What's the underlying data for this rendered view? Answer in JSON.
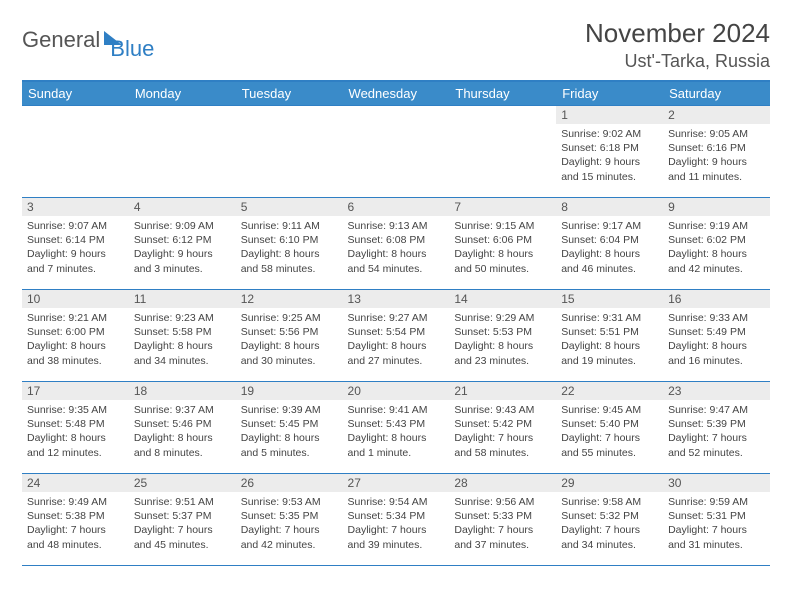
{
  "logo": {
    "text1": "General",
    "text2": "Blue"
  },
  "title": {
    "month": "November 2024",
    "location": "Ust'-Tarka, Russia"
  },
  "weekdays": [
    "Sunday",
    "Monday",
    "Tuesday",
    "Wednesday",
    "Thursday",
    "Friday",
    "Saturday"
  ],
  "colors": {
    "header_bg": "#3a8bc9",
    "accent": "#2f7fc4",
    "daynum_bg": "#ececec"
  },
  "weeks": [
    [
      {
        "n": "",
        "sr": "",
        "ss": "",
        "dl": ""
      },
      {
        "n": "",
        "sr": "",
        "ss": "",
        "dl": ""
      },
      {
        "n": "",
        "sr": "",
        "ss": "",
        "dl": ""
      },
      {
        "n": "",
        "sr": "",
        "ss": "",
        "dl": ""
      },
      {
        "n": "",
        "sr": "",
        "ss": "",
        "dl": ""
      },
      {
        "n": "1",
        "sr": "Sunrise: 9:02 AM",
        "ss": "Sunset: 6:18 PM",
        "dl": "Daylight: 9 hours and 15 minutes."
      },
      {
        "n": "2",
        "sr": "Sunrise: 9:05 AM",
        "ss": "Sunset: 6:16 PM",
        "dl": "Daylight: 9 hours and 11 minutes."
      }
    ],
    [
      {
        "n": "3",
        "sr": "Sunrise: 9:07 AM",
        "ss": "Sunset: 6:14 PM",
        "dl": "Daylight: 9 hours and 7 minutes."
      },
      {
        "n": "4",
        "sr": "Sunrise: 9:09 AM",
        "ss": "Sunset: 6:12 PM",
        "dl": "Daylight: 9 hours and 3 minutes."
      },
      {
        "n": "5",
        "sr": "Sunrise: 9:11 AM",
        "ss": "Sunset: 6:10 PM",
        "dl": "Daylight: 8 hours and 58 minutes."
      },
      {
        "n": "6",
        "sr": "Sunrise: 9:13 AM",
        "ss": "Sunset: 6:08 PM",
        "dl": "Daylight: 8 hours and 54 minutes."
      },
      {
        "n": "7",
        "sr": "Sunrise: 9:15 AM",
        "ss": "Sunset: 6:06 PM",
        "dl": "Daylight: 8 hours and 50 minutes."
      },
      {
        "n": "8",
        "sr": "Sunrise: 9:17 AM",
        "ss": "Sunset: 6:04 PM",
        "dl": "Daylight: 8 hours and 46 minutes."
      },
      {
        "n": "9",
        "sr": "Sunrise: 9:19 AM",
        "ss": "Sunset: 6:02 PM",
        "dl": "Daylight: 8 hours and 42 minutes."
      }
    ],
    [
      {
        "n": "10",
        "sr": "Sunrise: 9:21 AM",
        "ss": "Sunset: 6:00 PM",
        "dl": "Daylight: 8 hours and 38 minutes."
      },
      {
        "n": "11",
        "sr": "Sunrise: 9:23 AM",
        "ss": "Sunset: 5:58 PM",
        "dl": "Daylight: 8 hours and 34 minutes."
      },
      {
        "n": "12",
        "sr": "Sunrise: 9:25 AM",
        "ss": "Sunset: 5:56 PM",
        "dl": "Daylight: 8 hours and 30 minutes."
      },
      {
        "n": "13",
        "sr": "Sunrise: 9:27 AM",
        "ss": "Sunset: 5:54 PM",
        "dl": "Daylight: 8 hours and 27 minutes."
      },
      {
        "n": "14",
        "sr": "Sunrise: 9:29 AM",
        "ss": "Sunset: 5:53 PM",
        "dl": "Daylight: 8 hours and 23 minutes."
      },
      {
        "n": "15",
        "sr": "Sunrise: 9:31 AM",
        "ss": "Sunset: 5:51 PM",
        "dl": "Daylight: 8 hours and 19 minutes."
      },
      {
        "n": "16",
        "sr": "Sunrise: 9:33 AM",
        "ss": "Sunset: 5:49 PM",
        "dl": "Daylight: 8 hours and 16 minutes."
      }
    ],
    [
      {
        "n": "17",
        "sr": "Sunrise: 9:35 AM",
        "ss": "Sunset: 5:48 PM",
        "dl": "Daylight: 8 hours and 12 minutes."
      },
      {
        "n": "18",
        "sr": "Sunrise: 9:37 AM",
        "ss": "Sunset: 5:46 PM",
        "dl": "Daylight: 8 hours and 8 minutes."
      },
      {
        "n": "19",
        "sr": "Sunrise: 9:39 AM",
        "ss": "Sunset: 5:45 PM",
        "dl": "Daylight: 8 hours and 5 minutes."
      },
      {
        "n": "20",
        "sr": "Sunrise: 9:41 AM",
        "ss": "Sunset: 5:43 PM",
        "dl": "Daylight: 8 hours and 1 minute."
      },
      {
        "n": "21",
        "sr": "Sunrise: 9:43 AM",
        "ss": "Sunset: 5:42 PM",
        "dl": "Daylight: 7 hours and 58 minutes."
      },
      {
        "n": "22",
        "sr": "Sunrise: 9:45 AM",
        "ss": "Sunset: 5:40 PM",
        "dl": "Daylight: 7 hours and 55 minutes."
      },
      {
        "n": "23",
        "sr": "Sunrise: 9:47 AM",
        "ss": "Sunset: 5:39 PM",
        "dl": "Daylight: 7 hours and 52 minutes."
      }
    ],
    [
      {
        "n": "24",
        "sr": "Sunrise: 9:49 AM",
        "ss": "Sunset: 5:38 PM",
        "dl": "Daylight: 7 hours and 48 minutes."
      },
      {
        "n": "25",
        "sr": "Sunrise: 9:51 AM",
        "ss": "Sunset: 5:37 PM",
        "dl": "Daylight: 7 hours and 45 minutes."
      },
      {
        "n": "26",
        "sr": "Sunrise: 9:53 AM",
        "ss": "Sunset: 5:35 PM",
        "dl": "Daylight: 7 hours and 42 minutes."
      },
      {
        "n": "27",
        "sr": "Sunrise: 9:54 AM",
        "ss": "Sunset: 5:34 PM",
        "dl": "Daylight: 7 hours and 39 minutes."
      },
      {
        "n": "28",
        "sr": "Sunrise: 9:56 AM",
        "ss": "Sunset: 5:33 PM",
        "dl": "Daylight: 7 hours and 37 minutes."
      },
      {
        "n": "29",
        "sr": "Sunrise: 9:58 AM",
        "ss": "Sunset: 5:32 PM",
        "dl": "Daylight: 7 hours and 34 minutes."
      },
      {
        "n": "30",
        "sr": "Sunrise: 9:59 AM",
        "ss": "Sunset: 5:31 PM",
        "dl": "Daylight: 7 hours and 31 minutes."
      }
    ]
  ]
}
